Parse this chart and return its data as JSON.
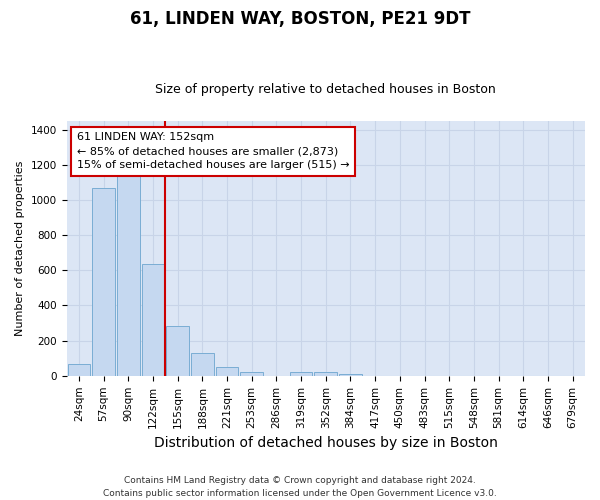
{
  "title1": "61, LINDEN WAY, BOSTON, PE21 9DT",
  "title2": "Size of property relative to detached houses in Boston",
  "xlabel": "Distribution of detached houses by size in Boston",
  "ylabel": "Number of detached properties",
  "categories": [
    "24sqm",
    "57sqm",
    "90sqm",
    "122sqm",
    "155sqm",
    "188sqm",
    "221sqm",
    "253sqm",
    "286sqm",
    "319sqm",
    "352sqm",
    "384sqm",
    "417sqm",
    "450sqm",
    "483sqm",
    "515sqm",
    "548sqm",
    "581sqm",
    "614sqm",
    "646sqm",
    "679sqm"
  ],
  "values": [
    65,
    1070,
    1155,
    635,
    285,
    130,
    48,
    20,
    0,
    20,
    20,
    10,
    0,
    0,
    0,
    0,
    0,
    0,
    0,
    0,
    0
  ],
  "bar_color": "#c5d8f0",
  "bar_edge_color": "#7aadd4",
  "vline_x_index": 3.5,
  "vline_color": "#cc0000",
  "annotation_line1": "61 LINDEN WAY: 152sqm",
  "annotation_line2": "← 85% of detached houses are smaller (2,873)",
  "annotation_line3": "15% of semi-detached houses are larger (515) →",
  "annotation_box_facecolor": "#ffffff",
  "annotation_box_edgecolor": "#cc0000",
  "ylim": [
    0,
    1450
  ],
  "yticks": [
    0,
    200,
    400,
    600,
    800,
    1000,
    1200,
    1400
  ],
  "grid_color": "#c8d4e8",
  "bg_color": "#dce6f5",
  "title1_fontsize": 12,
  "title2_fontsize": 9,
  "xlabel_fontsize": 10,
  "ylabel_fontsize": 8,
  "tick_fontsize": 7.5,
  "footer": "Contains HM Land Registry data © Crown copyright and database right 2024.\nContains public sector information licensed under the Open Government Licence v3.0."
}
